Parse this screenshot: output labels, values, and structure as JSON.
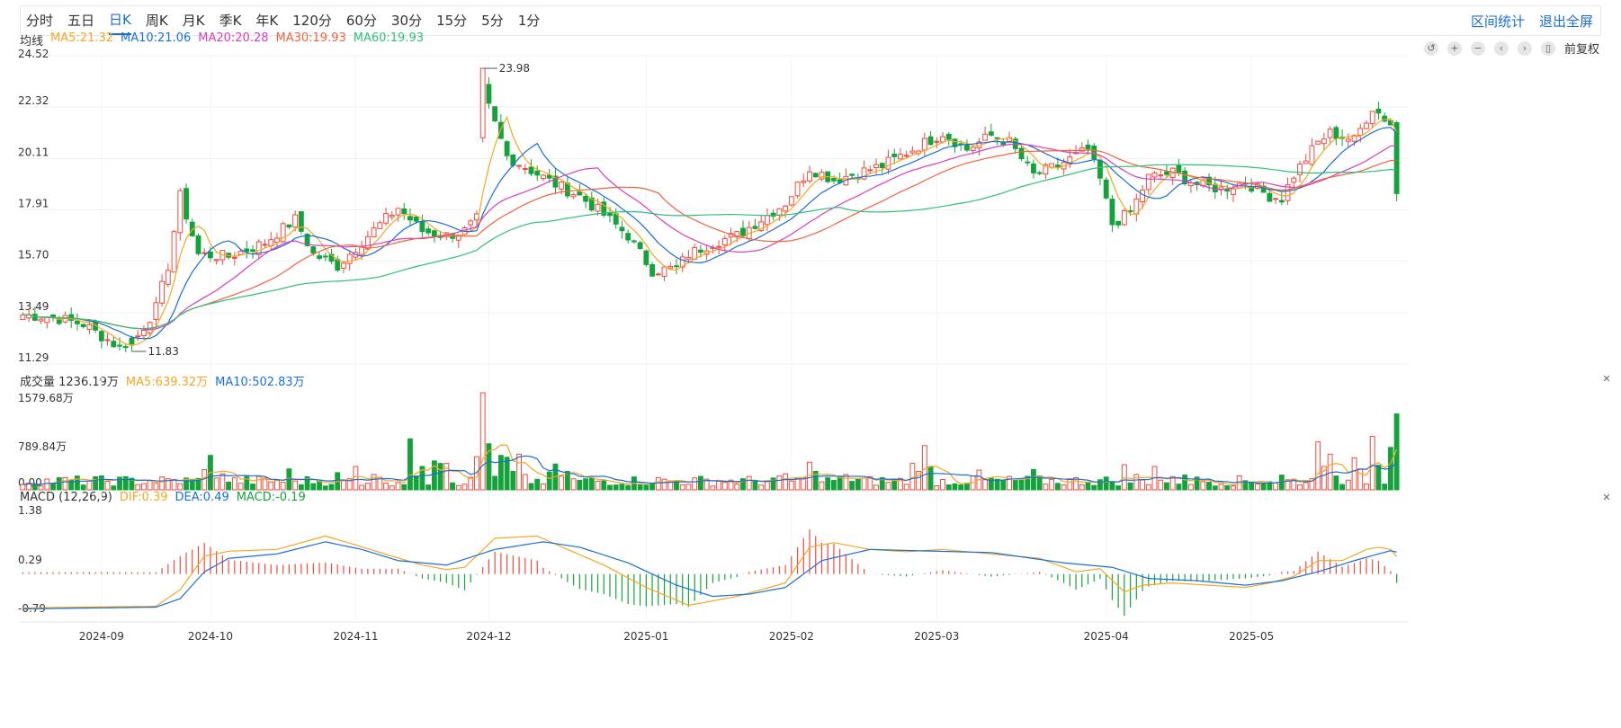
{
  "periods": [
    "分时",
    "五日",
    "日K",
    "周K",
    "月K",
    "季K",
    "年K",
    "120分",
    "60分",
    "30分",
    "15分",
    "5分",
    "1分"
  ],
  "active_period": "日K",
  "links": {
    "range_stats": "区间统计",
    "fullscreen": "退出全屏"
  },
  "adjust_label": "前复权",
  "tool_icons": [
    "undo-icon",
    "zoom-in-icon",
    "zoom-out-icon",
    "scroll-left-icon",
    "scroll-right-icon",
    "candle-type-icon"
  ],
  "colors": {
    "up": "#f04a3e",
    "down": "#14a33b",
    "ma5": "#f5a623",
    "ma10": "#1a6ed8",
    "ma20": "#d63fbf",
    "ma30": "#f0643c",
    "ma60": "#2fbf78",
    "dif": "#f5a623",
    "dea": "#1a6ed8"
  },
  "main_legend": {
    "label": "均线",
    "items": [
      {
        "key": "ma5",
        "text": "MA5:21.32"
      },
      {
        "key": "ma10",
        "text": "MA10:21.06"
      },
      {
        "key": "ma20",
        "text": "MA20:20.28"
      },
      {
        "key": "ma30",
        "text": "MA30:19.93"
      },
      {
        "key": "ma60",
        "text": "MA60:19.93"
      }
    ]
  },
  "vol_legend": {
    "label": "成交量 1236.19万",
    "items": [
      {
        "key": "ma5",
        "text": "MA5:639.32万"
      },
      {
        "key": "ma10",
        "text": "MA10:502.83万"
      }
    ]
  },
  "macd_legend": {
    "label": "MACD (12,26,9)",
    "items": [
      {
        "key": "dif",
        "text": "DIF:0.39"
      },
      {
        "key": "dea",
        "text": "DEA:0.49"
      },
      {
        "key": "macd",
        "text": "MACD:-0.19"
      }
    ]
  },
  "chart_data": [
    {
      "type": "candlestick",
      "y_ticks": [
        "24.52",
        "22.32",
        "20.11",
        "17.91",
        "15.70",
        "13.49",
        "11.29"
      ],
      "ylim": [
        11.29,
        24.52
      ],
      "x_ticks": [
        "2024-09",
        "2024-10",
        "2024-11",
        "2024-12",
        "2025-01",
        "2025-02",
        "2025-03",
        "2025-04",
        "2025-05"
      ],
      "annotations": [
        {
          "text": "23.98",
          "value": 23.98
        },
        {
          "text": "11.83",
          "value": 11.83
        }
      ],
      "anchors": [
        [
          0,
          13.4
        ],
        [
          5,
          13.3
        ],
        [
          10,
          13.0
        ],
        [
          16,
          12.0
        ],
        [
          19,
          12.5
        ],
        [
          22,
          13.7
        ],
        [
          24,
          15.5
        ],
        [
          26,
          18.5
        ],
        [
          29,
          16.0
        ],
        [
          34,
          15.9
        ],
        [
          40,
          16.5
        ],
        [
          45,
          17.5
        ],
        [
          48,
          16.0
        ],
        [
          52,
          15.5
        ],
        [
          57,
          16.8
        ],
        [
          62,
          18.0
        ],
        [
          66,
          17.0
        ],
        [
          70,
          16.8
        ],
        [
          73,
          17.0
        ],
        [
          75,
          17.5
        ],
        [
          76,
          23.0
        ],
        [
          80,
          20.2
        ],
        [
          84,
          19.6
        ],
        [
          88,
          19.0
        ],
        [
          92,
          18.5
        ],
        [
          96,
          17.7
        ],
        [
          100,
          16.8
        ],
        [
          104,
          15.3
        ],
        [
          108,
          15.4
        ],
        [
          110,
          16.0
        ],
        [
          114,
          16.5
        ],
        [
          118,
          16.8
        ],
        [
          122,
          17.5
        ],
        [
          126,
          18.2
        ],
        [
          130,
          19.7
        ],
        [
          134,
          19.2
        ],
        [
          138,
          19.5
        ],
        [
          142,
          19.8
        ],
        [
          147,
          20.5
        ],
        [
          152,
          21.2
        ],
        [
          156,
          20.5
        ],
        [
          160,
          21.1
        ],
        [
          163,
          20.8
        ],
        [
          167,
          19.4
        ],
        [
          171,
          19.8
        ],
        [
          176,
          20.5
        ],
        [
          178,
          19.2
        ],
        [
          180,
          17.3
        ],
        [
          183,
          17.8
        ],
        [
          186,
          19.3
        ],
        [
          190,
          19.5
        ],
        [
          194,
          19.0
        ],
        [
          198,
          18.8
        ],
        [
          202,
          19.1
        ],
        [
          206,
          18.5
        ],
        [
          208,
          18.4
        ],
        [
          210,
          19.4
        ],
        [
          214,
          20.8
        ],
        [
          216,
          21.2
        ],
        [
          220,
          20.9
        ],
        [
          223,
          22.3
        ],
        [
          226,
          21.6
        ],
        [
          227,
          18.6
        ]
      ],
      "x_tick_index": [
        13,
        31,
        55,
        77,
        103,
        127,
        151,
        179,
        203
      ]
    },
    {
      "type": "bar",
      "name": "成交量",
      "y_ticks": [
        "1579.68万",
        "789.84万",
        "0.00"
      ],
      "ylim": [
        0,
        1579.68
      ],
      "highlights": [
        [
          30,
          330
        ],
        [
          31,
          560
        ],
        [
          33,
          260
        ],
        [
          44,
          340
        ],
        [
          52,
          280
        ],
        [
          55,
          380
        ],
        [
          58,
          250
        ],
        [
          64,
          830
        ],
        [
          66,
          380
        ],
        [
          68,
          470
        ],
        [
          69,
          430
        ],
        [
          70,
          430
        ],
        [
          75,
          540
        ],
        [
          76,
          1579
        ],
        [
          77,
          750
        ],
        [
          79,
          560
        ],
        [
          80,
          530
        ],
        [
          81,
          300
        ],
        [
          82,
          580
        ],
        [
          83,
          250
        ],
        [
          87,
          290
        ],
        [
          88,
          420
        ],
        [
          90,
          300
        ],
        [
          105,
          200
        ],
        [
          126,
          260
        ],
        [
          130,
          450
        ],
        [
          131,
          300
        ],
        [
          136,
          250
        ],
        [
          147,
          430
        ],
        [
          148,
          300
        ],
        [
          149,
          720
        ],
        [
          150,
          380
        ],
        [
          158,
          320
        ],
        [
          167,
          330
        ],
        [
          182,
          410
        ],
        [
          184,
          250
        ],
        [
          187,
          380
        ],
        [
          192,
          240
        ],
        [
          208,
          240
        ],
        [
          214,
          780
        ],
        [
          215,
          380
        ],
        [
          216,
          580
        ],
        [
          220,
          520
        ],
        [
          221,
          340
        ],
        [
          223,
          870
        ],
        [
          224,
          400
        ],
        [
          226,
          690
        ],
        [
          227,
          1236
        ]
      ]
    },
    {
      "type": "line+bar",
      "name": "MACD",
      "y_ticks": [
        "1.38",
        "0.29",
        "-0.79"
      ],
      "ylim": [
        -0.79,
        1.38
      ],
      "dif_anchors": [
        [
          0,
          -0.76
        ],
        [
          10,
          -0.74
        ],
        [
          22,
          -0.72
        ],
        [
          26,
          -0.35
        ],
        [
          30,
          0.4
        ],
        [
          34,
          0.51
        ],
        [
          42,
          0.55
        ],
        [
          50,
          0.85
        ],
        [
          55,
          0.65
        ],
        [
          61,
          0.4
        ],
        [
          66,
          0.2
        ],
        [
          70,
          0.1
        ],
        [
          73,
          0.15
        ],
        [
          78,
          0.8
        ],
        [
          85,
          0.85
        ],
        [
          90,
          0.55
        ],
        [
          96,
          0.2
        ],
        [
          103,
          -0.3
        ],
        [
          110,
          -0.7
        ],
        [
          114,
          -0.6
        ],
        [
          118,
          -0.5
        ],
        [
          126,
          -0.2
        ],
        [
          130,
          0.6
        ],
        [
          134,
          0.7
        ],
        [
          140,
          0.55
        ],
        [
          146,
          0.5
        ],
        [
          152,
          0.55
        ],
        [
          160,
          0.45
        ],
        [
          168,
          0.35
        ],
        [
          174,
          0.05
        ],
        [
          178,
          0.12
        ],
        [
          182,
          -0.4
        ],
        [
          185,
          -0.25
        ],
        [
          190,
          -0.2
        ],
        [
          196,
          -0.25
        ],
        [
          202,
          -0.3
        ],
        [
          206,
          -0.2
        ],
        [
          210,
          -0.05
        ],
        [
          214,
          0.3
        ],
        [
          218,
          0.3
        ],
        [
          222,
          0.55
        ],
        [
          224,
          0.6
        ],
        [
          226,
          0.55
        ],
        [
          227,
          0.39
        ]
      ],
      "dea_anchors": [
        [
          0,
          -0.78
        ],
        [
          22,
          -0.74
        ],
        [
          26,
          -0.55
        ],
        [
          30,
          0.05
        ],
        [
          34,
          0.35
        ],
        [
          42,
          0.45
        ],
        [
          50,
          0.72
        ],
        [
          56,
          0.55
        ],
        [
          62,
          0.3
        ],
        [
          70,
          0.2
        ],
        [
          78,
          0.55
        ],
        [
          86,
          0.72
        ],
        [
          92,
          0.6
        ],
        [
          100,
          0.25
        ],
        [
          108,
          -0.25
        ],
        [
          114,
          -0.5
        ],
        [
          120,
          -0.45
        ],
        [
          126,
          -0.3
        ],
        [
          132,
          0.3
        ],
        [
          140,
          0.55
        ],
        [
          148,
          0.52
        ],
        [
          160,
          0.48
        ],
        [
          172,
          0.25
        ],
        [
          180,
          0.15
        ],
        [
          186,
          -0.1
        ],
        [
          194,
          -0.15
        ],
        [
          202,
          -0.25
        ],
        [
          208,
          -0.15
        ],
        [
          214,
          0.05
        ],
        [
          220,
          0.3
        ],
        [
          224,
          0.45
        ],
        [
          226,
          0.52
        ],
        [
          227,
          0.49
        ]
      ]
    }
  ]
}
